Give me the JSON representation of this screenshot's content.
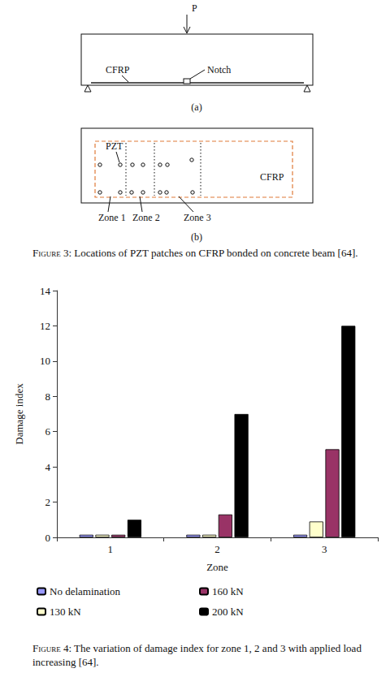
{
  "figure3": {
    "panel_a": {
      "load_label": "P",
      "cfrp_label": "CFRP",
      "notch_label": "Notch",
      "tag": "(a)"
    },
    "panel_b": {
      "pzt_label": "PZT",
      "cfrp_label": "CFRP",
      "zones": [
        "Zone 1",
        "Zone 2",
        "Zone 3"
      ],
      "tag": "(b)"
    },
    "caption": {
      "label": "Figure 3:",
      "text": "Locations of PZT patches on CFRP bonded on concrete beam [64]."
    }
  },
  "chart_data": {
    "type": "bar",
    "categories": [
      "1",
      "2",
      "3"
    ],
    "x_label": "Zone",
    "y_label": "Damage index",
    "series": [
      {
        "name": "No delamination",
        "color": "#9999ff",
        "values": [
          0.15,
          0.15,
          0.15
        ]
      },
      {
        "name": "130 kN",
        "color": "#ffffcc",
        "values": [
          0.15,
          0.15,
          0.9
        ]
      },
      {
        "name": "160 kN",
        "color": "#993366",
        "values": [
          0.15,
          1.3,
          5.0
        ]
      },
      {
        "name": "200 kN",
        "color": "#000000",
        "values": [
          1.0,
          7.0,
          12.0
        ]
      }
    ],
    "ylim": [
      0,
      14
    ],
    "yticks": [
      0,
      2,
      4,
      6,
      8,
      10,
      12,
      14
    ],
    "grid": false,
    "legend": "bottom"
  },
  "figure4_caption": {
    "label": "Figure 4:",
    "text": "The variation of damage index for zone 1, 2 and 3 with applied load increasing [64]."
  }
}
